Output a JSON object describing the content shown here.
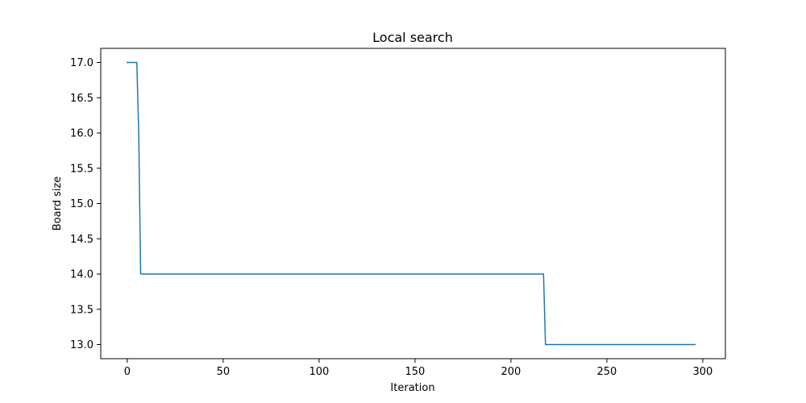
{
  "chart_data": {
    "type": "line",
    "title": "Local search",
    "xlabel": "Iteration",
    "ylabel": "Board size",
    "xlim": [
      -13.8,
      311.8
    ],
    "ylim": [
      12.8,
      17.2
    ],
    "xticks": [
      0,
      50,
      100,
      150,
      200,
      250,
      300
    ],
    "yticks": [
      13.0,
      13.5,
      14.0,
      14.5,
      15.0,
      15.5,
      16.0,
      16.5,
      17.0
    ],
    "xtick_labels": [
      "0",
      "50",
      "100",
      "150",
      "200",
      "250",
      "300"
    ],
    "ytick_labels": [
      "13.0",
      "13.5",
      "14.0",
      "14.5",
      "15.0",
      "15.5",
      "16.0",
      "16.5",
      "17.0"
    ],
    "grid": false,
    "series": [
      {
        "color": "#1f77b4",
        "x": [
          0,
          5,
          6,
          7,
          217,
          218,
          296
        ],
        "y": [
          17,
          17,
          16,
          14,
          14,
          13,
          13
        ]
      }
    ]
  }
}
